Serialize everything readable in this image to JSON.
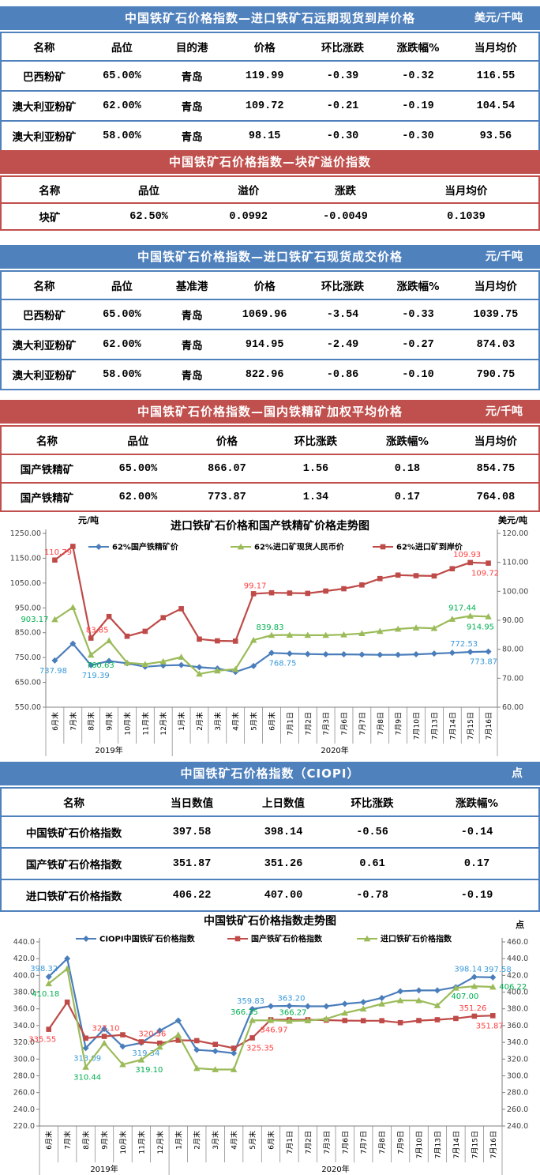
{
  "colors": {
    "blue_theme": "#4F81BD",
    "red_theme": "#C0504D",
    "series_blue": "#4A7EBB",
    "series_red": "#BE4B48",
    "series_green": "#9BBB59",
    "label_blue": "#3A9AD9",
    "label_red": "#FF4040",
    "label_green": "#00B050",
    "header_text": "#FFFFFF",
    "cell_text": "#000000"
  },
  "tables": [
    {
      "id": "import-forward-cfr",
      "theme": "blue",
      "title": "中国铁矿石价格指数—进口铁矿石远期现货到岸价格",
      "unit": "美元/千吨",
      "columns": [
        "名称",
        "品位",
        "目的港",
        "价格",
        "环比涨跌",
        "涨跌幅%",
        "当月均价"
      ],
      "rows": [
        [
          "巴西粉矿",
          "65.00%",
          "青岛",
          "119.99",
          "-0.39",
          "-0.32",
          "116.55"
        ],
        [
          "澳大利亚粉矿",
          "62.00%",
          "青岛",
          "109.72",
          "-0.21",
          "-0.19",
          "104.54"
        ],
        [
          "澳大利亚粉矿",
          "58.00%",
          "青岛",
          "98.15",
          "-0.30",
          "-0.30",
          "93.56"
        ]
      ]
    },
    {
      "id": "lump-premium",
      "theme": "red",
      "title": "中国铁矿石价格指数—块矿溢价指数",
      "unit": "",
      "columns": [
        "名称",
        "品位",
        "溢价",
        "涨跌",
        "当月均价"
      ],
      "rows": [
        [
          "块矿",
          "62.50%",
          "0.0992",
          "-0.0049",
          "0.1039"
        ]
      ]
    },
    {
      "id": "import-spot-cny",
      "theme": "blue",
      "title": "中国铁矿石价格指数—进口铁矿石现货成交价格",
      "unit": "元/千吨",
      "columns": [
        "名称",
        "品位",
        "基准港",
        "价格",
        "环比涨跌",
        "涨跌幅%",
        "当月均价"
      ],
      "rows": [
        [
          "巴西粉矿",
          "65.00%",
          "青岛",
          "1069.96",
          "-3.54",
          "-0.33",
          "1039.75"
        ],
        [
          "澳大利亚粉矿",
          "62.00%",
          "青岛",
          "914.95",
          "-2.49",
          "-0.27",
          "874.03"
        ],
        [
          "澳大利亚粉矿",
          "58.00%",
          "青岛",
          "822.96",
          "-0.86",
          "-0.10",
          "790.75"
        ]
      ]
    },
    {
      "id": "domestic-concentrate",
      "theme": "red",
      "title": "中国铁矿石价格指数—国内铁精矿加权平均价格",
      "unit": "元/千吨",
      "columns": [
        "名称",
        "品位",
        "价格",
        "环比涨跌",
        "涨跌幅%",
        "当月均价"
      ],
      "rows": [
        [
          "国产铁精矿",
          "65.00%",
          "866.07",
          "1.56",
          "0.18",
          "854.75"
        ],
        [
          "国产铁精矿",
          "62.00%",
          "773.87",
          "1.34",
          "0.17",
          "764.08"
        ]
      ]
    },
    {
      "id": "ciopi",
      "theme": "blue",
      "title": "中国铁矿石价格指数（CIOPI）",
      "unit": "点",
      "columns": [
        "名称",
        "当日数值",
        "上日数值",
        "环比涨跌",
        "涨跌幅%"
      ],
      "rows": [
        [
          "中国铁矿石价格指数",
          "397.58",
          "398.14",
          "-0.56",
          "-0.14"
        ],
        [
          "国产铁矿石价格指数",
          "351.87",
          "351.26",
          "0.61",
          "0.17"
        ],
        [
          "进口铁矿石价格指数",
          "406.22",
          "407.00",
          "-0.78",
          "-0.19"
        ]
      ]
    }
  ],
  "chart_data": [
    {
      "type": "line",
      "title": "进口铁矿石价格和国产铁精矿价格走势图",
      "unit_left": "元/吨",
      "unit_right": "美元/吨",
      "grid": false,
      "legend_position": "top",
      "x": [
        "6月末",
        "7月末",
        "8月末",
        "9月末",
        "10月末",
        "11月末",
        "12月末",
        "1月末",
        "2月末",
        "3月末",
        "4月末",
        "5月末",
        "6月末",
        "7月1日",
        "7月2日",
        "7月3日",
        "7月6日",
        "7月7日",
        "7月8日",
        "7月9日",
        "7月10日",
        "7月13日",
        "7月14日",
        "7月15日",
        "7月16日"
      ],
      "x_groups": [
        {
          "label": "2019年",
          "count": 7
        },
        {
          "label": "2020年",
          "count": 18
        }
      ],
      "axis_left": {
        "min": 550,
        "max": 1250,
        "step": 100,
        "decimals": 2
      },
      "axis_right": {
        "min": 60,
        "max": 120,
        "step": 10,
        "decimals": 2
      },
      "series": [
        {
          "name": "62%国产铁精矿价",
          "axis": "left",
          "marker": "diamond",
          "color": "#4A7EBB",
          "label_color": "#3A9AD9",
          "values": [
            737.98,
            806,
            719.39,
            736,
            727,
            713,
            718,
            720,
            711,
            706,
            692,
            716,
            768.75,
            766,
            764,
            763,
            763,
            762,
            761,
            761,
            763,
            766,
            769,
            772.53,
            773.87
          ],
          "labels": [
            {
              "i": 0,
              "v": "737.98",
              "pos": "below",
              "dx": -2
            },
            {
              "i": 2,
              "v": "719.39",
              "pos": "below",
              "dx": 6
            },
            {
              "i": 12,
              "v": "768.75",
              "pos": "below",
              "dx": 14
            },
            {
              "i": 23,
              "v": "772.53",
              "pos": "above",
              "dx": -8
            },
            {
              "i": 24,
              "v": "773.87",
              "pos": "below",
              "dx": -6
            }
          ]
        },
        {
          "name": "62%进口矿现货人民币价",
          "axis": "left",
          "marker": "triangle",
          "color": "#9BBB59",
          "label_color": "#00B050",
          "values": [
            903.17,
            952,
            760.63,
            818,
            729,
            723,
            734,
            752,
            684,
            697,
            703,
            820,
            839.83,
            841,
            840,
            840,
            842,
            847,
            856,
            865,
            870,
            868,
            905,
            917.44,
            914.95
          ],
          "labels": [
            {
              "i": 0,
              "v": "903.17",
              "pos": "left"
            },
            {
              "i": 2,
              "v": "760.63",
              "pos": "below",
              "dx": 12
            },
            {
              "i": 12,
              "v": "839.83",
              "pos": "above",
              "dx": -2
            },
            {
              "i": 23,
              "v": "917.44",
              "pos": "above",
              "dx": -10
            },
            {
              "i": 24,
              "v": "914.95",
              "pos": "below",
              "dx": -10
            }
          ]
        },
        {
          "name": "62%进口矿到岸价",
          "axis": "right",
          "marker": "square",
          "color": "#BE4B48",
          "label_color": "#FF4040",
          "values": [
            110.79,
            115.5,
            83.85,
            91.3,
            84.5,
            86.2,
            90.9,
            94.0,
            83.5,
            82.9,
            82.8,
            99.17,
            99.5,
            99.4,
            99.3,
            100.1,
            100.9,
            102.2,
            104.4,
            105.6,
            105.4,
            105.3,
            107.8,
            109.93,
            109.72
          ],
          "labels": [
            {
              "i": 0,
              "v": "110.79",
              "pos": "above",
              "dx": 4
            },
            {
              "i": 2,
              "v": "83.85",
              "pos": "above",
              "dx": 8
            },
            {
              "i": 11,
              "v": "99.17",
              "pos": "above",
              "dx": 2
            },
            {
              "i": 23,
              "v": "109.93",
              "pos": "above",
              "dx": -4
            },
            {
              "i": 24,
              "v": "109.72",
              "pos": "below",
              "dx": -4
            }
          ]
        }
      ]
    },
    {
      "type": "line",
      "title": "中国铁矿石价格指数走势图",
      "unit_right": "点",
      "grid": false,
      "legend_position": "top",
      "x": [
        "6月末",
        "7月末",
        "8月末",
        "9月末",
        "10月末",
        "11月末",
        "12月末",
        "1月末",
        "2月末",
        "3月末",
        "4月末",
        "5月末",
        "6月末",
        "7月1日",
        "7月2日",
        "7月3日",
        "7月6日",
        "7月7日",
        "7月8日",
        "7月9日",
        "7月10日",
        "7月13日",
        "7月14日",
        "7月15日",
        "7月16日"
      ],
      "x_groups": [
        {
          "label": "2019年",
          "count": 7
        },
        {
          "label": "2020年",
          "count": 18
        }
      ],
      "axis_left": {
        "min": 220,
        "max": 440,
        "step": 20,
        "decimals": 1
      },
      "axis_right": {
        "min": 240,
        "max": 460,
        "step": 20,
        "decimals": 1
      },
      "series": [
        {
          "name": "CIOPI中国铁矿石价格指数",
          "axis": "left",
          "marker": "diamond",
          "color": "#4A7EBB",
          "label_color": "#3A9AD9",
          "values": [
            398.32,
            420,
            313.09,
            336,
            315,
            319.34,
            334,
            346,
            311,
            309.5,
            307,
            359.83,
            363.2,
            363.5,
            363,
            363,
            366,
            368,
            373,
            381,
            382,
            382,
            386,
            398.14,
            397.58
          ],
          "labels": [
            {
              "i": 0,
              "v": "398.32",
              "pos": "above",
              "dx": -6
            },
            {
              "i": 2,
              "v": "313.09",
              "pos": "below",
              "dx": 2
            },
            {
              "i": 5,
              "v": "319.34",
              "pos": "below",
              "dx": 6
            },
            {
              "i": 11,
              "v": "359.83",
              "pos": "above",
              "dx": -2
            },
            {
              "i": 12,
              "v": "363.20",
              "pos": "above",
              "dx": 26
            },
            {
              "i": 23,
              "v": "398.14",
              "pos": "above",
              "dx": -8
            },
            {
              "i": 24,
              "v": "397.58",
              "pos": "above",
              "dx": 6
            }
          ]
        },
        {
          "name": "国产铁矿石价格指数",
          "axis": "left",
          "marker": "square",
          "color": "#BE4B48",
          "label_color": "#FF4040",
          "values": [
            335.55,
            368,
            325,
            327.1,
            329,
            320.56,
            319,
            322.5,
            322,
            317.5,
            313,
            325.35,
            346.97,
            347,
            347,
            346.5,
            346,
            345.8,
            345.8,
            343.5,
            346,
            347,
            348.5,
            351.26,
            351.87
          ],
          "labels": [
            {
              "i": 0,
              "v": "335.55",
              "pos": "below",
              "dx": -8
            },
            {
              "i": 3,
              "v": "327.10",
              "pos": "above",
              "dx": 2
            },
            {
              "i": 5,
              "v": "320.56",
              "pos": "above",
              "dx": 14
            },
            {
              "i": 11,
              "v": "325.35",
              "pos": "below",
              "dx": 10
            },
            {
              "i": 12,
              "v": "346.97",
              "pos": "below",
              "dx": 4
            },
            {
              "i": 23,
              "v": "351.26",
              "pos": "above",
              "dx": -2
            },
            {
              "i": 24,
              "v": "351.87",
              "pos": "below",
              "dx": -4
            }
          ]
        },
        {
          "name": "进口铁矿石价格指数",
          "axis": "right",
          "marker": "triangle",
          "color": "#9BBB59",
          "label_color": "#00B050",
          "values": [
            410.18,
            428,
            310.44,
            339,
            313.5,
            319.1,
            334.5,
            349,
            309,
            307.5,
            307.5,
            366.35,
            366.27,
            365.5,
            366,
            368,
            375,
            380,
            386,
            390,
            390,
            384,
            405,
            407.0,
            406.22
          ],
          "labels": [
            {
              "i": 0,
              "v": "410.18",
              "pos": "below",
              "dx": -4
            },
            {
              "i": 2,
              "v": "310.44",
              "pos": "below",
              "dx": 2
            },
            {
              "i": 5,
              "v": "319.10",
              "pos": "below",
              "dx": 10
            },
            {
              "i": 11,
              "v": "366.35",
              "pos": "above",
              "dx": -10
            },
            {
              "i": 12,
              "v": "366.27",
              "pos": "above",
              "dx": 28
            },
            {
              "i": 23,
              "v": "407.00",
              "pos": "below",
              "dx": -12
            },
            {
              "i": 24,
              "v": "406.22",
              "pos": "right"
            }
          ]
        }
      ]
    }
  ]
}
